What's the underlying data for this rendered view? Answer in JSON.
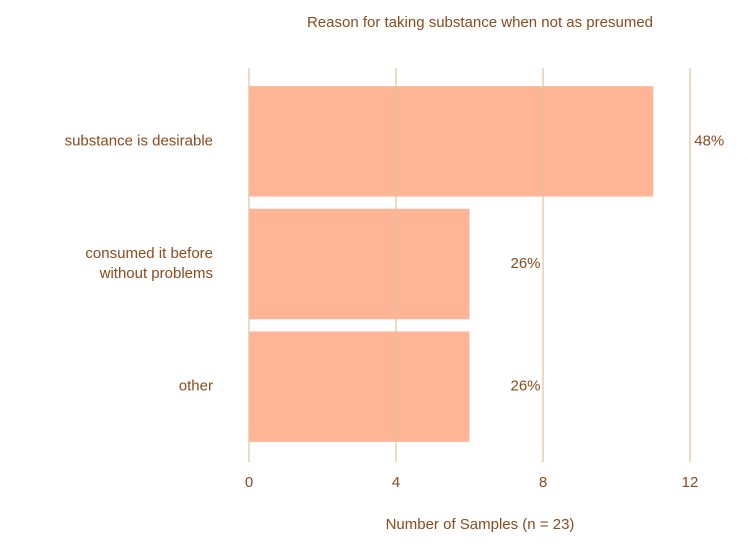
{
  "chart_data": {
    "type": "barh",
    "title": "Reason for taking substance when not as presumed",
    "x_label": "Number of Samples (n = 23)",
    "categories": [
      "substance is desirable",
      "consumed it before\nwithout problems",
      "other"
    ],
    "values": [
      11,
      6,
      6
    ],
    "value_labels": [
      "48%",
      "26%",
      "26%"
    ],
    "color": "#ffb08f",
    "xlim": [
      0,
      12
    ],
    "xticks": [
      0,
      4,
      8,
      12
    ],
    "grid": true
  }
}
